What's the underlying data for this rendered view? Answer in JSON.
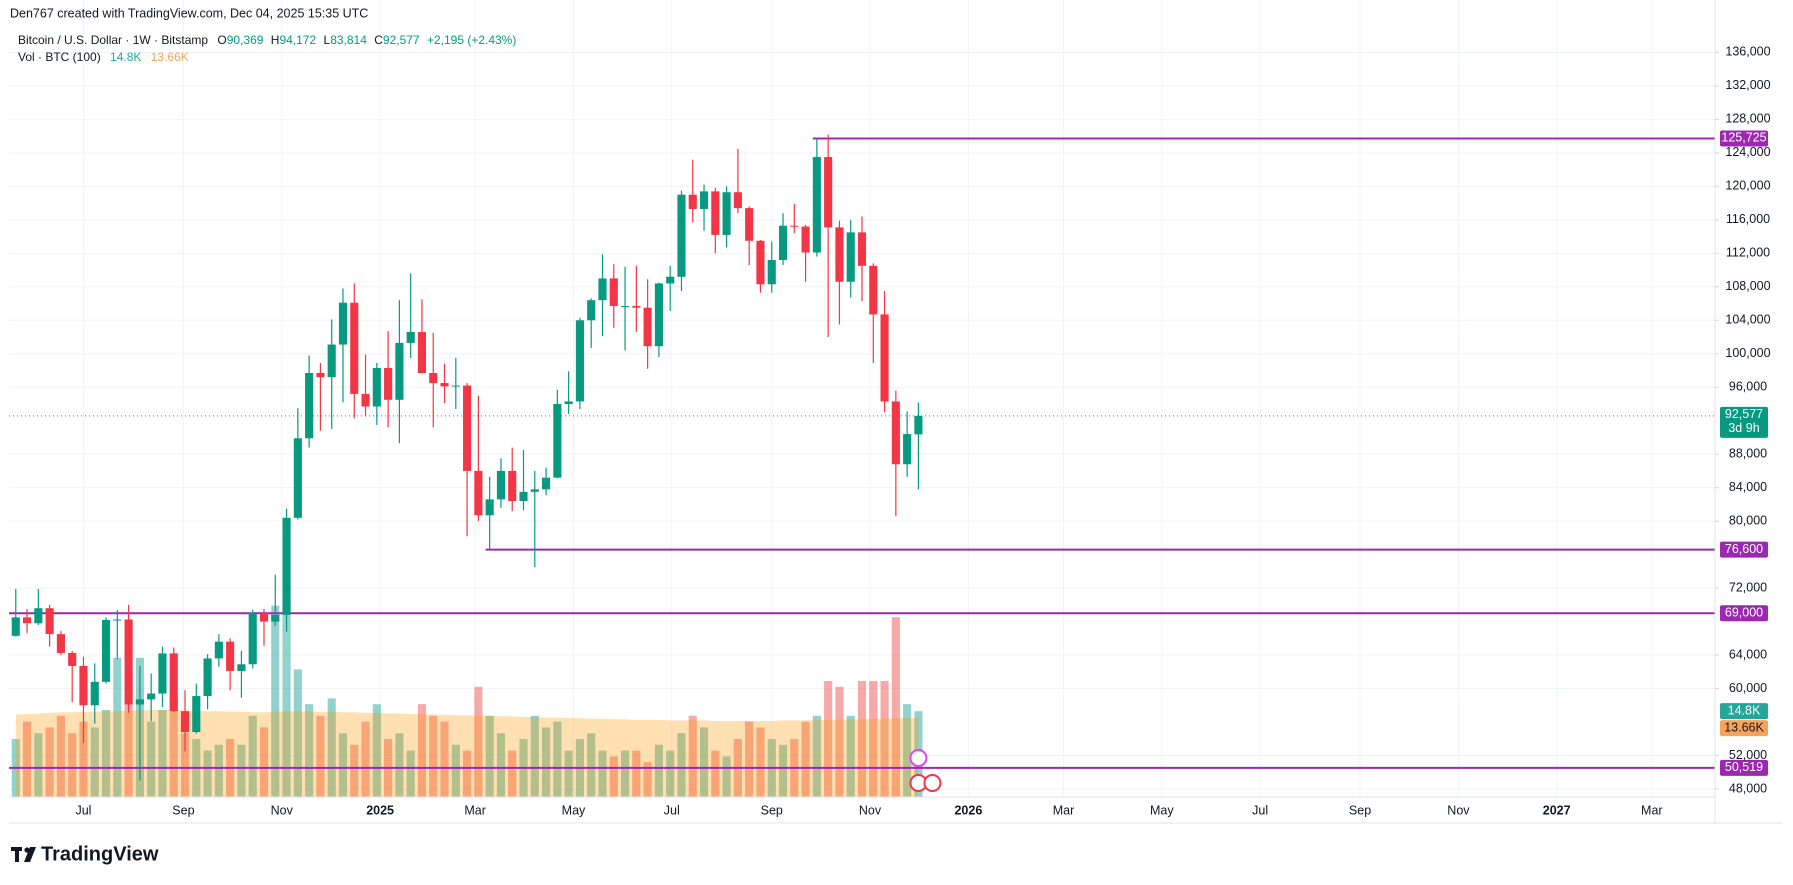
{
  "chart_data": {
    "type": "candlestick",
    "attribution": "Den767 created with TradingView.com, Dec 04, 2025 15:35 UTC",
    "symbol": "Bitcoin / U.S. Dollar · 1W · Bitstamp",
    "ohlc_legend": [
      {
        "key": "O",
        "label": "90,369"
      },
      {
        "key": "H",
        "label": "94,172"
      },
      {
        "key": "L",
        "label": "83,814"
      },
      {
        "key": "C",
        "label": "92,577"
      }
    ],
    "change": "+2,195 (+2.43%)",
    "volume_legend": "Vol · BTC (100)",
    "volume_label": "14.8K",
    "volume_ma_label": "13.66K",
    "brand": "TradingView",
    "up_color": "#089981",
    "down_color": "#f23645",
    "level_color": "#9c27b0",
    "grid": true,
    "x": [
      0,
      1,
      2,
      3,
      4,
      5,
      6,
      7,
      8,
      9,
      10,
      11,
      12,
      13,
      14,
      15,
      16,
      17,
      18,
      19,
      20,
      21,
      22,
      23,
      24,
      25,
      26,
      27,
      28,
      29,
      30,
      31,
      32,
      33,
      34,
      35,
      36,
      37,
      38,
      39,
      40,
      41,
      42,
      43,
      44,
      45,
      46,
      47,
      48,
      49,
      50,
      51,
      52,
      53,
      54,
      55,
      56,
      57,
      58,
      59,
      60,
      61,
      62,
      63,
      64,
      65,
      66,
      67,
      68,
      69,
      70,
      71,
      72,
      73,
      74,
      75,
      76,
      77,
      78,
      79,
      80
    ],
    "open": [
      66300,
      68500,
      67800,
      69600,
      66500,
      64250,
      62700,
      58000,
      60800,
      68200,
      68250,
      58100,
      58700,
      59400,
      64200,
      57300,
      54800,
      59100,
      63600,
      65600,
      62100,
      62900,
      69000,
      68000,
      68800,
      80400,
      89900,
      97700,
      97200,
      101100,
      106100,
      95200,
      93700,
      98300,
      94500,
      101300,
      102600,
      97700,
      96500,
      96100,
      96200,
      86000,
      80700,
      82600,
      86000,
      82400,
      83500,
      83800,
      85200,
      94000,
      94300,
      104000,
      106400,
      109000,
      105700,
      105700,
      105500,
      100900,
      108400,
      109200,
      119000,
      117300,
      119400,
      114200,
      119300,
      117400,
      113500,
      108300,
      111200,
      115300,
      115200,
      112100,
      123500,
      115100,
      108600,
      114500,
      110500,
      104700,
      94300,
      86800,
      90369
    ],
    "high": [
      71900,
      69500,
      71900,
      70000,
      66900,
      64500,
      63800,
      63000,
      68500,
      69400,
      70000,
      62700,
      61800,
      65000,
      64900,
      59800,
      60600,
      64100,
      66500,
      66000,
      64500,
      69400,
      69500,
      73600,
      81500,
      93500,
      99800,
      98900,
      104100,
      107800,
      108400,
      99900,
      98900,
      102700,
      106400,
      109600,
      106500,
      102500,
      98800,
      99500,
      96500,
      95000,
      85300,
      87500,
      88800,
      88500,
      86000,
      86400,
      95700,
      97900,
      104300,
      106600,
      111900,
      110700,
      110400,
      110500,
      108900,
      108500,
      110500,
      119500,
      123200,
      120200,
      119800,
      120000,
      124500,
      117600,
      113600,
      113400,
      116800,
      117900,
      115400,
      125700,
      126200,
      115900,
      116000,
      116400,
      110800,
      107500,
      95600,
      93100,
      94172
    ],
    "low": [
      66200,
      66600,
      67600,
      65000,
      64000,
      58400,
      53500,
      55800,
      60600,
      63500,
      57100,
      49000,
      56100,
      57800,
      57200,
      52500,
      54600,
      57500,
      62600,
      59800,
      58900,
      62400,
      65100,
      67500,
      66800,
      80200,
      88800,
      90800,
      91000,
      94200,
      92300,
      92500,
      91500,
      91200,
      89300,
      99500,
      97700,
      91200,
      94100,
      93400,
      78200,
      80000,
      76600,
      81600,
      81200,
      81300,
      74500,
      83100,
      85100,
      92800,
      93400,
      100700,
      102100,
      103100,
      100400,
      102600,
      98200,
      99600,
      105100,
      107500,
      115700,
      114700,
      112000,
      112700,
      116800,
      110600,
      107300,
      107300,
      110600,
      114400,
      108600,
      111600,
      102000,
      103500,
      106700,
      106300,
      98900,
      93000,
      80600,
      85300,
      83814
    ],
    "close": [
      68500,
      67800,
      69600,
      66500,
      64250,
      62700,
      58000,
      60800,
      68200,
      68250,
      58100,
      58700,
      59400,
      64200,
      57300,
      54800,
      59100,
      63600,
      65600,
      62100,
      62900,
      69000,
      68000,
      68800,
      80400,
      89900,
      97700,
      97200,
      101100,
      106100,
      95200,
      93700,
      98300,
      94500,
      101300,
      102600,
      97700,
      96500,
      96100,
      96200,
      86000,
      80700,
      82600,
      86000,
      82400,
      83500,
      83800,
      85200,
      94000,
      94300,
      104000,
      106400,
      109000,
      105700,
      105700,
      105500,
      100900,
      108400,
      109200,
      119000,
      117300,
      119400,
      114200,
      119300,
      117400,
      113500,
      108300,
      111200,
      115300,
      115200,
      112100,
      123500,
      115100,
      108600,
      114500,
      110500,
      104700,
      94300,
      86800,
      90400,
      92577
    ],
    "volume": [
      10,
      13,
      11,
      12,
      14,
      11,
      13,
      12,
      15,
      24,
      17,
      24,
      13,
      15,
      17,
      11,
      10,
      8,
      9,
      10,
      9,
      14,
      12,
      33,
      33,
      22,
      16,
      14,
      17,
      11,
      9,
      13,
      16,
      10,
      11,
      8,
      16,
      14,
      13,
      9,
      8,
      19,
      14,
      11,
      8,
      10,
      14,
      12,
      13,
      8,
      10,
      11,
      8,
      7,
      8,
      8,
      6,
      9,
      8,
      11,
      14,
      12,
      8,
      7,
      10,
      13,
      12,
      10,
      9,
      10,
      13,
      14,
      20,
      19,
      14,
      20,
      20,
      20,
      31,
      16,
      14.8
    ],
    "volume_ma": [
      14.2,
      14.3,
      14.4,
      14.5,
      14.6,
      14.6,
      14.7,
      14.7,
      14.8,
      14.8,
      14.9,
      14.9,
      15.0,
      15.0,
      15.0,
      14.9,
      14.9,
      14.8,
      14.8,
      14.7,
      14.7,
      14.6,
      14.6,
      14.7,
      14.8,
      14.8,
      14.8,
      14.7,
      14.7,
      14.6,
      14.6,
      14.5,
      14.5,
      14.4,
      14.4,
      14.3,
      14.3,
      14.2,
      14.2,
      14.1,
      14.1,
      14.0,
      14.0,
      13.9,
      13.9,
      13.8,
      13.8,
      13.7,
      13.7,
      13.6,
      13.6,
      13.5,
      13.5,
      13.4,
      13.4,
      13.3,
      13.3,
      13.3,
      13.2,
      13.2,
      13.2,
      13.2,
      13.1,
      13.1,
      13.1,
      13.1,
      13.1,
      13.1,
      13.2,
      13.2,
      13.2,
      13.3,
      13.3,
      13.3,
      13.4,
      13.4,
      13.5,
      13.5,
      13.6,
      13.6,
      13.66
    ],
    "xlim": [
      -0.6,
      150.6
    ],
    "xticks": [
      {
        "value": 6,
        "label": "Jul"
      },
      {
        "value": 14.86,
        "label": "Sep"
      },
      {
        "value": 23.57,
        "label": "Nov"
      },
      {
        "value": 32.29,
        "label": "2025"
      },
      {
        "value": 40.71,
        "label": "Mar"
      },
      {
        "value": 49.43,
        "label": "May"
      },
      {
        "value": 58.14,
        "label": "Jul"
      },
      {
        "value": 67,
        "label": "Sep"
      },
      {
        "value": 75.71,
        "label": "Nov"
      },
      {
        "value": 84.43,
        "label": "2026"
      },
      {
        "value": 92.86,
        "label": "Mar"
      },
      {
        "value": 101.57,
        "label": "May"
      },
      {
        "value": 110.29,
        "label": "Jul"
      },
      {
        "value": 119.14,
        "label": "Sep"
      },
      {
        "value": 127.86,
        "label": "Nov"
      },
      {
        "value": 136.57,
        "label": "2027"
      },
      {
        "value": 145,
        "label": "Mar"
      }
    ],
    "ylim": [
      47040,
      139280
    ],
    "yticks": [
      {
        "value": 48000,
        "label": "48,000"
      },
      {
        "value": 52000,
        "label": "52,000"
      },
      {
        "value": 60000,
        "label": "60,000"
      },
      {
        "value": 64000,
        "label": "64,000"
      },
      {
        "value": 72000,
        "label": "72,000"
      },
      {
        "value": 80000,
        "label": "80,000"
      },
      {
        "value": 84000,
        "label": "84,000"
      },
      {
        "value": 88000,
        "label": "88,000"
      },
      {
        "value": 96000,
        "label": "96,000"
      },
      {
        "value": 100000,
        "label": "100,000"
      },
      {
        "value": 104000,
        "label": "104,000"
      },
      {
        "value": 108000,
        "label": "108,000"
      },
      {
        "value": 112000,
        "label": "112,000"
      },
      {
        "value": 116000,
        "label": "116,000"
      },
      {
        "value": 120000,
        "label": "120,000"
      },
      {
        "value": 124000,
        "label": "124,000"
      },
      {
        "value": 128000,
        "label": "128,000"
      },
      {
        "value": 132000,
        "label": "132,000"
      },
      {
        "value": 136000,
        "label": "136,000"
      }
    ],
    "levels": [
      {
        "value": 125725,
        "label": "125,725",
        "x_start": 71
      },
      {
        "value": 76600,
        "label": "76,600",
        "x_start": 42
      },
      {
        "value": 69000,
        "label": "69,000"
      },
      {
        "value": 50519,
        "label": "50,519"
      }
    ],
    "current_price": {
      "value": 92577,
      "label": "92,577",
      "countdown": "3d 9h"
    }
  }
}
